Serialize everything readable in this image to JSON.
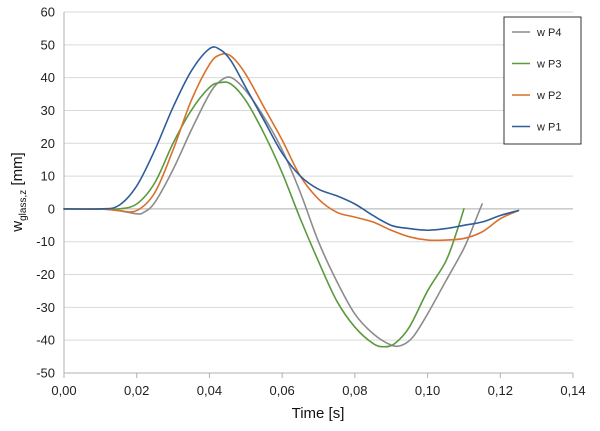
{
  "chart_data": {
    "type": "line",
    "title": "",
    "xlabel": "Time [s]",
    "ylabel": {
      "main": "w",
      "sub": "glass,z",
      "unit": " [mm]"
    },
    "xlim": [
      0,
      0.14
    ],
    "ylim": [
      -50,
      60
    ],
    "xticks": [
      0,
      0.02,
      0.04,
      0.06,
      0.08,
      0.1,
      0.12,
      0.14
    ],
    "xtick_labels": [
      "0,00",
      "0,02",
      "0,04",
      "0,06",
      "0,08",
      "0,10",
      "0,12",
      "0,14"
    ],
    "yticks": [
      -50,
      -40,
      -30,
      -20,
      -10,
      0,
      10,
      20,
      30,
      40,
      50,
      60
    ],
    "ytick_labels": [
      "-50",
      "-40",
      "-30",
      "-20",
      "-10",
      "0",
      "10",
      "20",
      "30",
      "40",
      "50",
      "60"
    ],
    "grid": {
      "horizontal": true,
      "vertical": false
    },
    "legend_position": "top-right",
    "series": [
      {
        "name": "w P4",
        "color": "#8c8c8c",
        "points": [
          [
            0,
            0
          ],
          [
            0.01,
            0
          ],
          [
            0.015,
            -0.5
          ],
          [
            0.02,
            -1.5
          ],
          [
            0.022,
            -1
          ],
          [
            0.025,
            2
          ],
          [
            0.03,
            12
          ],
          [
            0.035,
            24
          ],
          [
            0.04,
            35
          ],
          [
            0.043,
            39
          ],
          [
            0.046,
            40
          ],
          [
            0.05,
            36
          ],
          [
            0.055,
            28
          ],
          [
            0.06,
            18
          ],
          [
            0.065,
            5
          ],
          [
            0.07,
            -10
          ],
          [
            0.075,
            -22
          ],
          [
            0.08,
            -32
          ],
          [
            0.085,
            -38
          ],
          [
            0.09,
            -41.5
          ],
          [
            0.093,
            -41.5
          ],
          [
            0.096,
            -39
          ],
          [
            0.1,
            -32
          ],
          [
            0.105,
            -22
          ],
          [
            0.11,
            -12
          ],
          [
            0.113,
            -4
          ],
          [
            0.115,
            1.5
          ]
        ]
      },
      {
        "name": "w P3",
        "color": "#5b9a3c",
        "points": [
          [
            0,
            0
          ],
          [
            0.01,
            0
          ],
          [
            0.015,
            0
          ],
          [
            0.02,
            1.5
          ],
          [
            0.025,
            8
          ],
          [
            0.03,
            20
          ],
          [
            0.035,
            30
          ],
          [
            0.04,
            37
          ],
          [
            0.043,
            38.5
          ],
          [
            0.046,
            38
          ],
          [
            0.05,
            33
          ],
          [
            0.055,
            23
          ],
          [
            0.06,
            11
          ],
          [
            0.065,
            -3
          ],
          [
            0.07,
            -16
          ],
          [
            0.075,
            -28
          ],
          [
            0.08,
            -36
          ],
          [
            0.085,
            -41
          ],
          [
            0.088,
            -42
          ],
          [
            0.091,
            -41
          ],
          [
            0.095,
            -36
          ],
          [
            0.1,
            -25
          ],
          [
            0.105,
            -16
          ],
          [
            0.108,
            -7
          ],
          [
            0.11,
            0
          ]
        ]
      },
      {
        "name": "w P2",
        "color": "#d9702b",
        "points": [
          [
            0,
            0
          ],
          [
            0.01,
            0
          ],
          [
            0.015,
            -0.5
          ],
          [
            0.02,
            -0.5
          ],
          [
            0.025,
            5
          ],
          [
            0.03,
            18
          ],
          [
            0.035,
            33
          ],
          [
            0.04,
            44
          ],
          [
            0.043,
            47
          ],
          [
            0.046,
            46.5
          ],
          [
            0.05,
            41
          ],
          [
            0.055,
            31
          ],
          [
            0.06,
            21
          ],
          [
            0.065,
            10
          ],
          [
            0.07,
            3
          ],
          [
            0.075,
            -1
          ],
          [
            0.08,
            -2.5
          ],
          [
            0.085,
            -4
          ],
          [
            0.09,
            -6.5
          ],
          [
            0.095,
            -8.5
          ],
          [
            0.1,
            -9.5
          ],
          [
            0.105,
            -9.5
          ],
          [
            0.11,
            -9
          ],
          [
            0.115,
            -7
          ],
          [
            0.12,
            -3
          ],
          [
            0.125,
            -0.5
          ]
        ]
      },
      {
        "name": "w P1",
        "color": "#2e5d9a",
        "points": [
          [
            0,
            0
          ],
          [
            0.01,
            0
          ],
          [
            0.015,
            1
          ],
          [
            0.02,
            7
          ],
          [
            0.025,
            18
          ],
          [
            0.03,
            31
          ],
          [
            0.035,
            42
          ],
          [
            0.04,
            48.8
          ],
          [
            0.043,
            48.5
          ],
          [
            0.046,
            45
          ],
          [
            0.05,
            37
          ],
          [
            0.055,
            27
          ],
          [
            0.06,
            17
          ],
          [
            0.065,
            10
          ],
          [
            0.07,
            6
          ],
          [
            0.075,
            4
          ],
          [
            0.08,
            1.5
          ],
          [
            0.085,
            -2
          ],
          [
            0.09,
            -5
          ],
          [
            0.095,
            -6
          ],
          [
            0.1,
            -6.5
          ],
          [
            0.105,
            -6
          ],
          [
            0.11,
            -5
          ],
          [
            0.115,
            -4
          ],
          [
            0.12,
            -2
          ],
          [
            0.125,
            -0.5
          ]
        ]
      }
    ]
  }
}
